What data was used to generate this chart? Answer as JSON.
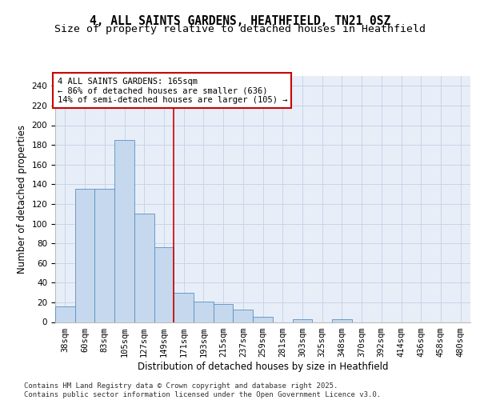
{
  "title_line1": "4, ALL SAINTS GARDENS, HEATHFIELD, TN21 0SZ",
  "title_line2": "Size of property relative to detached houses in Heathfield",
  "xlabel": "Distribution of detached houses by size in Heathfield",
  "ylabel": "Number of detached properties",
  "categories": [
    "38sqm",
    "60sqm",
    "83sqm",
    "105sqm",
    "127sqm",
    "149sqm",
    "171sqm",
    "193sqm",
    "215sqm",
    "237sqm",
    "259sqm",
    "281sqm",
    "303sqm",
    "325sqm",
    "348sqm",
    "370sqm",
    "392sqm",
    "414sqm",
    "436sqm",
    "458sqm",
    "480sqm"
  ],
  "values": [
    16,
    135,
    135,
    185,
    110,
    76,
    30,
    21,
    18,
    13,
    5,
    0,
    3,
    0,
    3,
    0,
    0,
    0,
    0,
    0,
    0
  ],
  "bar_color": "#c5d8ed",
  "bar_edge_color": "#5a8fc3",
  "grid_color": "#c8d4e8",
  "background_color": "#e8eef8",
  "annotation_box_text": "4 ALL SAINTS GARDENS: 165sqm\n← 86% of detached houses are smaller (636)\n14% of semi-detached houses are larger (105) →",
  "annotation_box_color": "#ffffff",
  "annotation_box_edge_color": "#cc0000",
  "vline_x": 5.5,
  "vline_color": "#cc0000",
  "ylim": [
    0,
    250
  ],
  "yticks": [
    0,
    20,
    40,
    60,
    80,
    100,
    120,
    140,
    160,
    180,
    200,
    220,
    240
  ],
  "footer_line1": "Contains HM Land Registry data © Crown copyright and database right 2025.",
  "footer_line2": "Contains public sector information licensed under the Open Government Licence v3.0.",
  "title_fontsize": 10.5,
  "subtitle_fontsize": 9.5,
  "axis_label_fontsize": 8.5,
  "tick_fontsize": 7.5,
  "annotation_fontsize": 7.5,
  "footer_fontsize": 6.5
}
